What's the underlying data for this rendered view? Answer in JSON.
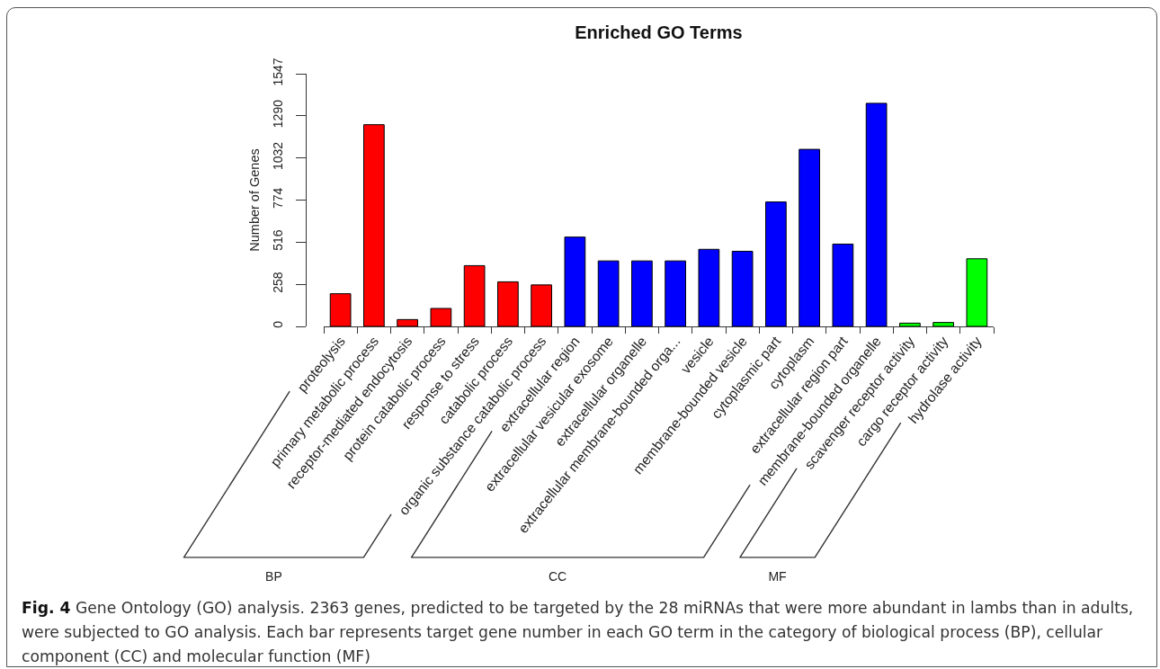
{
  "chart_data": {
    "type": "bar",
    "title": "Enriched GO Terms",
    "ylabel": "Number of Genes",
    "categories": [
      "proteolysis",
      "primary metabolic process",
      "receptor-mediated endocytosis",
      "protein catabolic process",
      "response to stress",
      "catabolic process",
      "organic substance catabolic process",
      "extracellular region",
      "extracellular vesicular exosome",
      "extracellular organelle",
      "extracellular membrane-bounded orga...",
      "vesicle",
      "membrane-bounded vesicle",
      "cytoplasmic part",
      "cytoplasm",
      "extracellular region part",
      "membrane-bounded organelle",
      "scavenger receptor activity",
      "cargo receptor activity",
      "hydrolase activity"
    ],
    "values": [
      200,
      1235,
      42,
      110,
      372,
      273,
      254,
      547,
      401,
      401,
      401,
      472,
      460,
      762,
      1084,
      504,
      1366,
      20,
      24,
      414
    ],
    "colors": [
      "#ff0000",
      "#ff0000",
      "#ff0000",
      "#ff0000",
      "#ff0000",
      "#ff0000",
      "#ff0000",
      "#0000ff",
      "#0000ff",
      "#0000ff",
      "#0000ff",
      "#0000ff",
      "#0000ff",
      "#0000ff",
      "#0000ff",
      "#0000ff",
      "#0000ff",
      "#00ff00",
      "#00ff00",
      "#00ff00"
    ],
    "ylim": [
      0,
      1547
    ],
    "yticks": [
      0,
      258,
      516,
      774,
      1032,
      1290,
      1547
    ],
    "annotations": [
      "BP",
      "CC",
      "MF",
      "Fig. 4",
      "Gene Ontology (GO) analysis. 2363 genes, predicted to be targeted by the 28 miRNAs that were more abundant in lambs than in adults, were subjected to GO analysis. Each bar represents target gene number in each GO term in the category of biological process (BP), cellular component (CC) and molecular function (MF)"
    ]
  }
}
